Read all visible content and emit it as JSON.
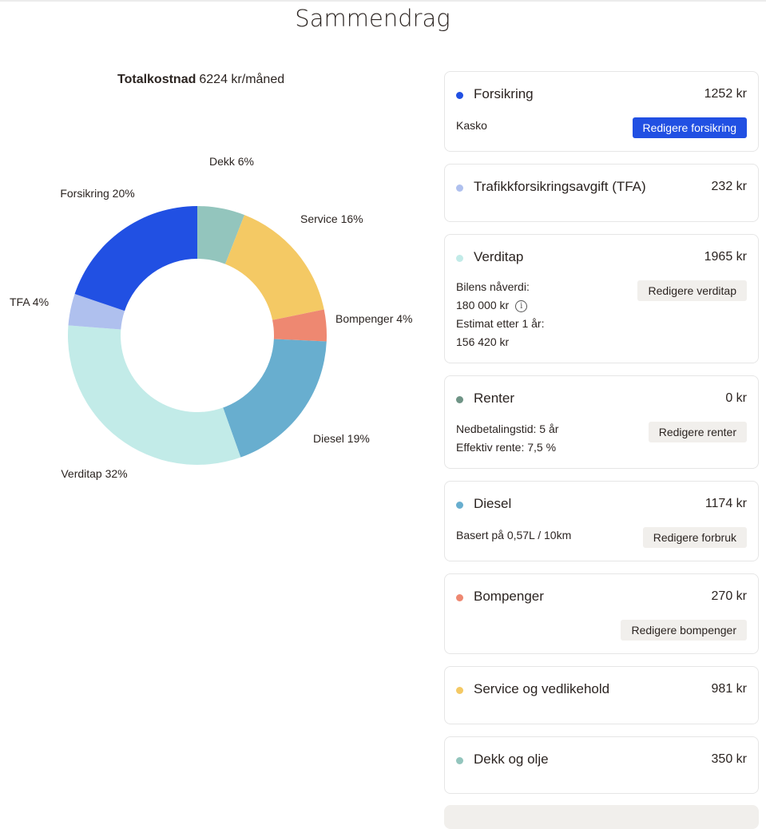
{
  "page": {
    "title": "Sammendrag"
  },
  "summary": {
    "total_label": "Totalkostnad",
    "total_value": "6224 kr/måned"
  },
  "chart_data": {
    "type": "pie",
    "variant": "donut",
    "slices": [
      {
        "label": "Dekk 6%",
        "value": 6,
        "color": "#93c5bd"
      },
      {
        "label": "Service 16%",
        "value": 16,
        "color": "#f4c964"
      },
      {
        "label": "Bompenger 4%",
        "value": 4,
        "color": "#ee8871"
      },
      {
        "label": "Diesel 19%",
        "value": 19,
        "color": "#68aecf"
      },
      {
        "label": "Verditap 32%",
        "value": 32,
        "color": "#c2ebe8"
      },
      {
        "label": "TFA 4%",
        "value": 4,
        "color": "#afc0ee"
      },
      {
        "label": "Forsikring 20%",
        "value": 20,
        "color": "#2150e3"
      }
    ]
  },
  "cards": {
    "forsikring": {
      "title": "Forsikring",
      "amount": "1252 kr",
      "dot_color": "#2150e3",
      "detail": "Kasko",
      "button": "Redigere forsikring"
    },
    "tfa": {
      "title": "Trafikkforsikringsavgift (TFA)",
      "amount": "232 kr",
      "dot_color": "#afc0ee"
    },
    "verditap": {
      "title": "Verditap",
      "amount": "1965 kr",
      "dot_color": "#c2ebe8",
      "line1": "Bilens nåverdi:",
      "line2": "180 000 kr",
      "line3": "Estimat etter 1 år:",
      "line4": "156 420 kr",
      "info_icon": "info-circle-icon",
      "button": "Redigere verditap"
    },
    "renter": {
      "title": "Renter",
      "amount": "0 kr",
      "dot_color": "#6f9486",
      "line1": "Nedbetalingstid: 5 år",
      "line2": "Effektiv rente: 7,5 %",
      "button": "Redigere renter"
    },
    "diesel": {
      "title": "Diesel",
      "amount": "1174 kr",
      "dot_color": "#68aecf",
      "detail": "Basert på 0,57L / 10km",
      "button": "Redigere forbruk"
    },
    "bompenger": {
      "title": "Bompenger",
      "amount": "270 kr",
      "dot_color": "#ee8871",
      "button": "Redigere bompenger"
    },
    "service": {
      "title": "Service og vedlikehold",
      "amount": "981 kr",
      "dot_color": "#f4c964"
    },
    "dekk": {
      "title": "Dekk og olje",
      "amount": "350 kr",
      "dot_color": "#93c5bd"
    }
  }
}
